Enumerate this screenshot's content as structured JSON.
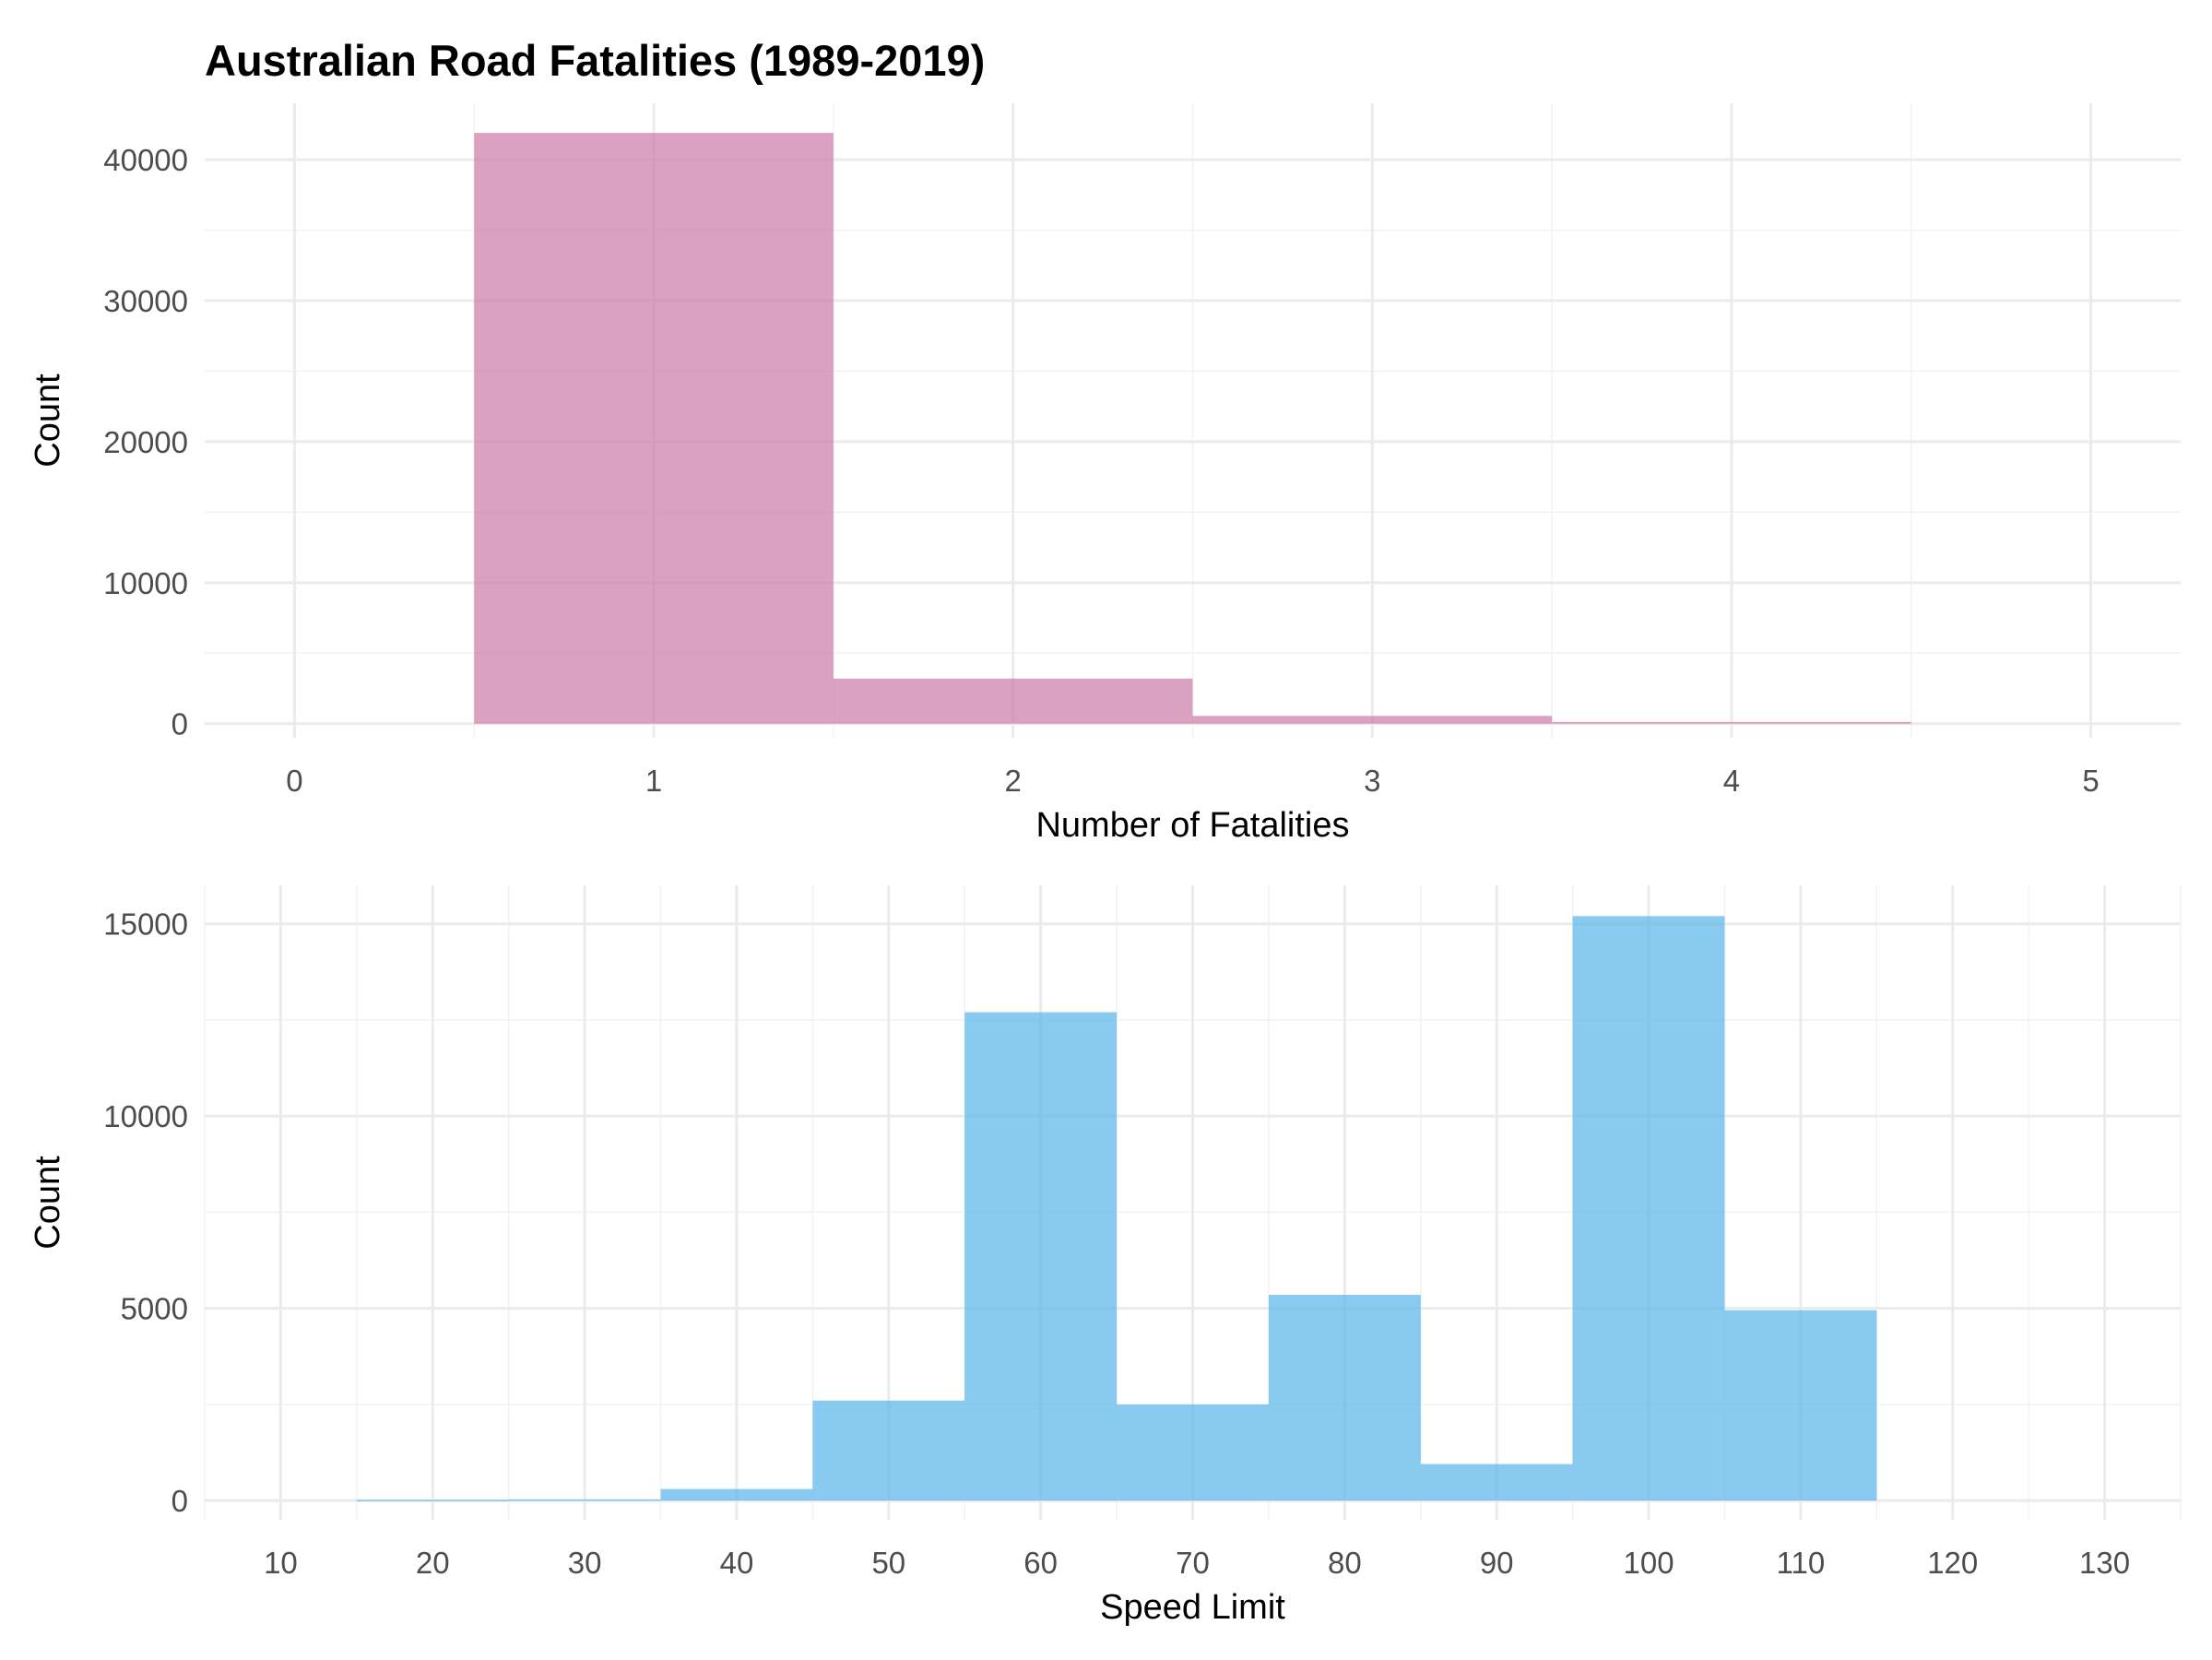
{
  "figure_title": "Australian Road Fatalities (1989-2019)",
  "chart_data": [
    {
      "type": "bar",
      "name": "fatalities-histogram",
      "xlabel": "Number of Fatalities",
      "ylabel": "Count",
      "color": "#CC79A7",
      "xlim": [
        -0.25,
        5.25
      ],
      "ylim": [
        -1000,
        44000
      ],
      "x_ticks": [
        0,
        1,
        2,
        3,
        4,
        5
      ],
      "y_ticks": [
        0,
        10000,
        20000,
        30000,
        40000
      ],
      "bins": [
        {
          "x0": 0.5,
          "x1": 1.5,
          "count": 41900
        },
        {
          "x0": 1.5,
          "x1": 2.5,
          "count": 3200
        },
        {
          "x0": 2.5,
          "x1": 3.5,
          "count": 550
        },
        {
          "x0": 3.5,
          "x1": 4.5,
          "count": 120
        }
      ]
    },
    {
      "type": "bar",
      "name": "speed-limit-histogram",
      "xlabel": "Speed Limit",
      "ylabel": "Count",
      "color": "#56B4E9",
      "xlim": [
        5,
        135
      ],
      "ylim": [
        -500,
        16000
      ],
      "x_ticks": [
        10,
        20,
        30,
        40,
        50,
        60,
        70,
        80,
        90,
        100,
        110,
        120,
        130
      ],
      "y_ticks": [
        0,
        5000,
        10000,
        15000
      ],
      "bins": [
        {
          "x0": 15,
          "x1": 25,
          "count": 20
        },
        {
          "x0": 25,
          "x1": 35,
          "count": 30
        },
        {
          "x0": 35,
          "x1": 45,
          "count": 300
        },
        {
          "x0": 45,
          "x1": 55,
          "count": 2600
        },
        {
          "x0": 55,
          "x1": 65,
          "count": 12700
        },
        {
          "x0": 65,
          "x1": 75,
          "count": 2500
        },
        {
          "x0": 75,
          "x1": 85,
          "count": 5350
        },
        {
          "x0": 85,
          "x1": 95,
          "count": 950
        },
        {
          "x0": 95,
          "x1": 105,
          "count": 15200
        },
        {
          "x0": 105,
          "x1": 115,
          "count": 4950
        }
      ]
    }
  ]
}
